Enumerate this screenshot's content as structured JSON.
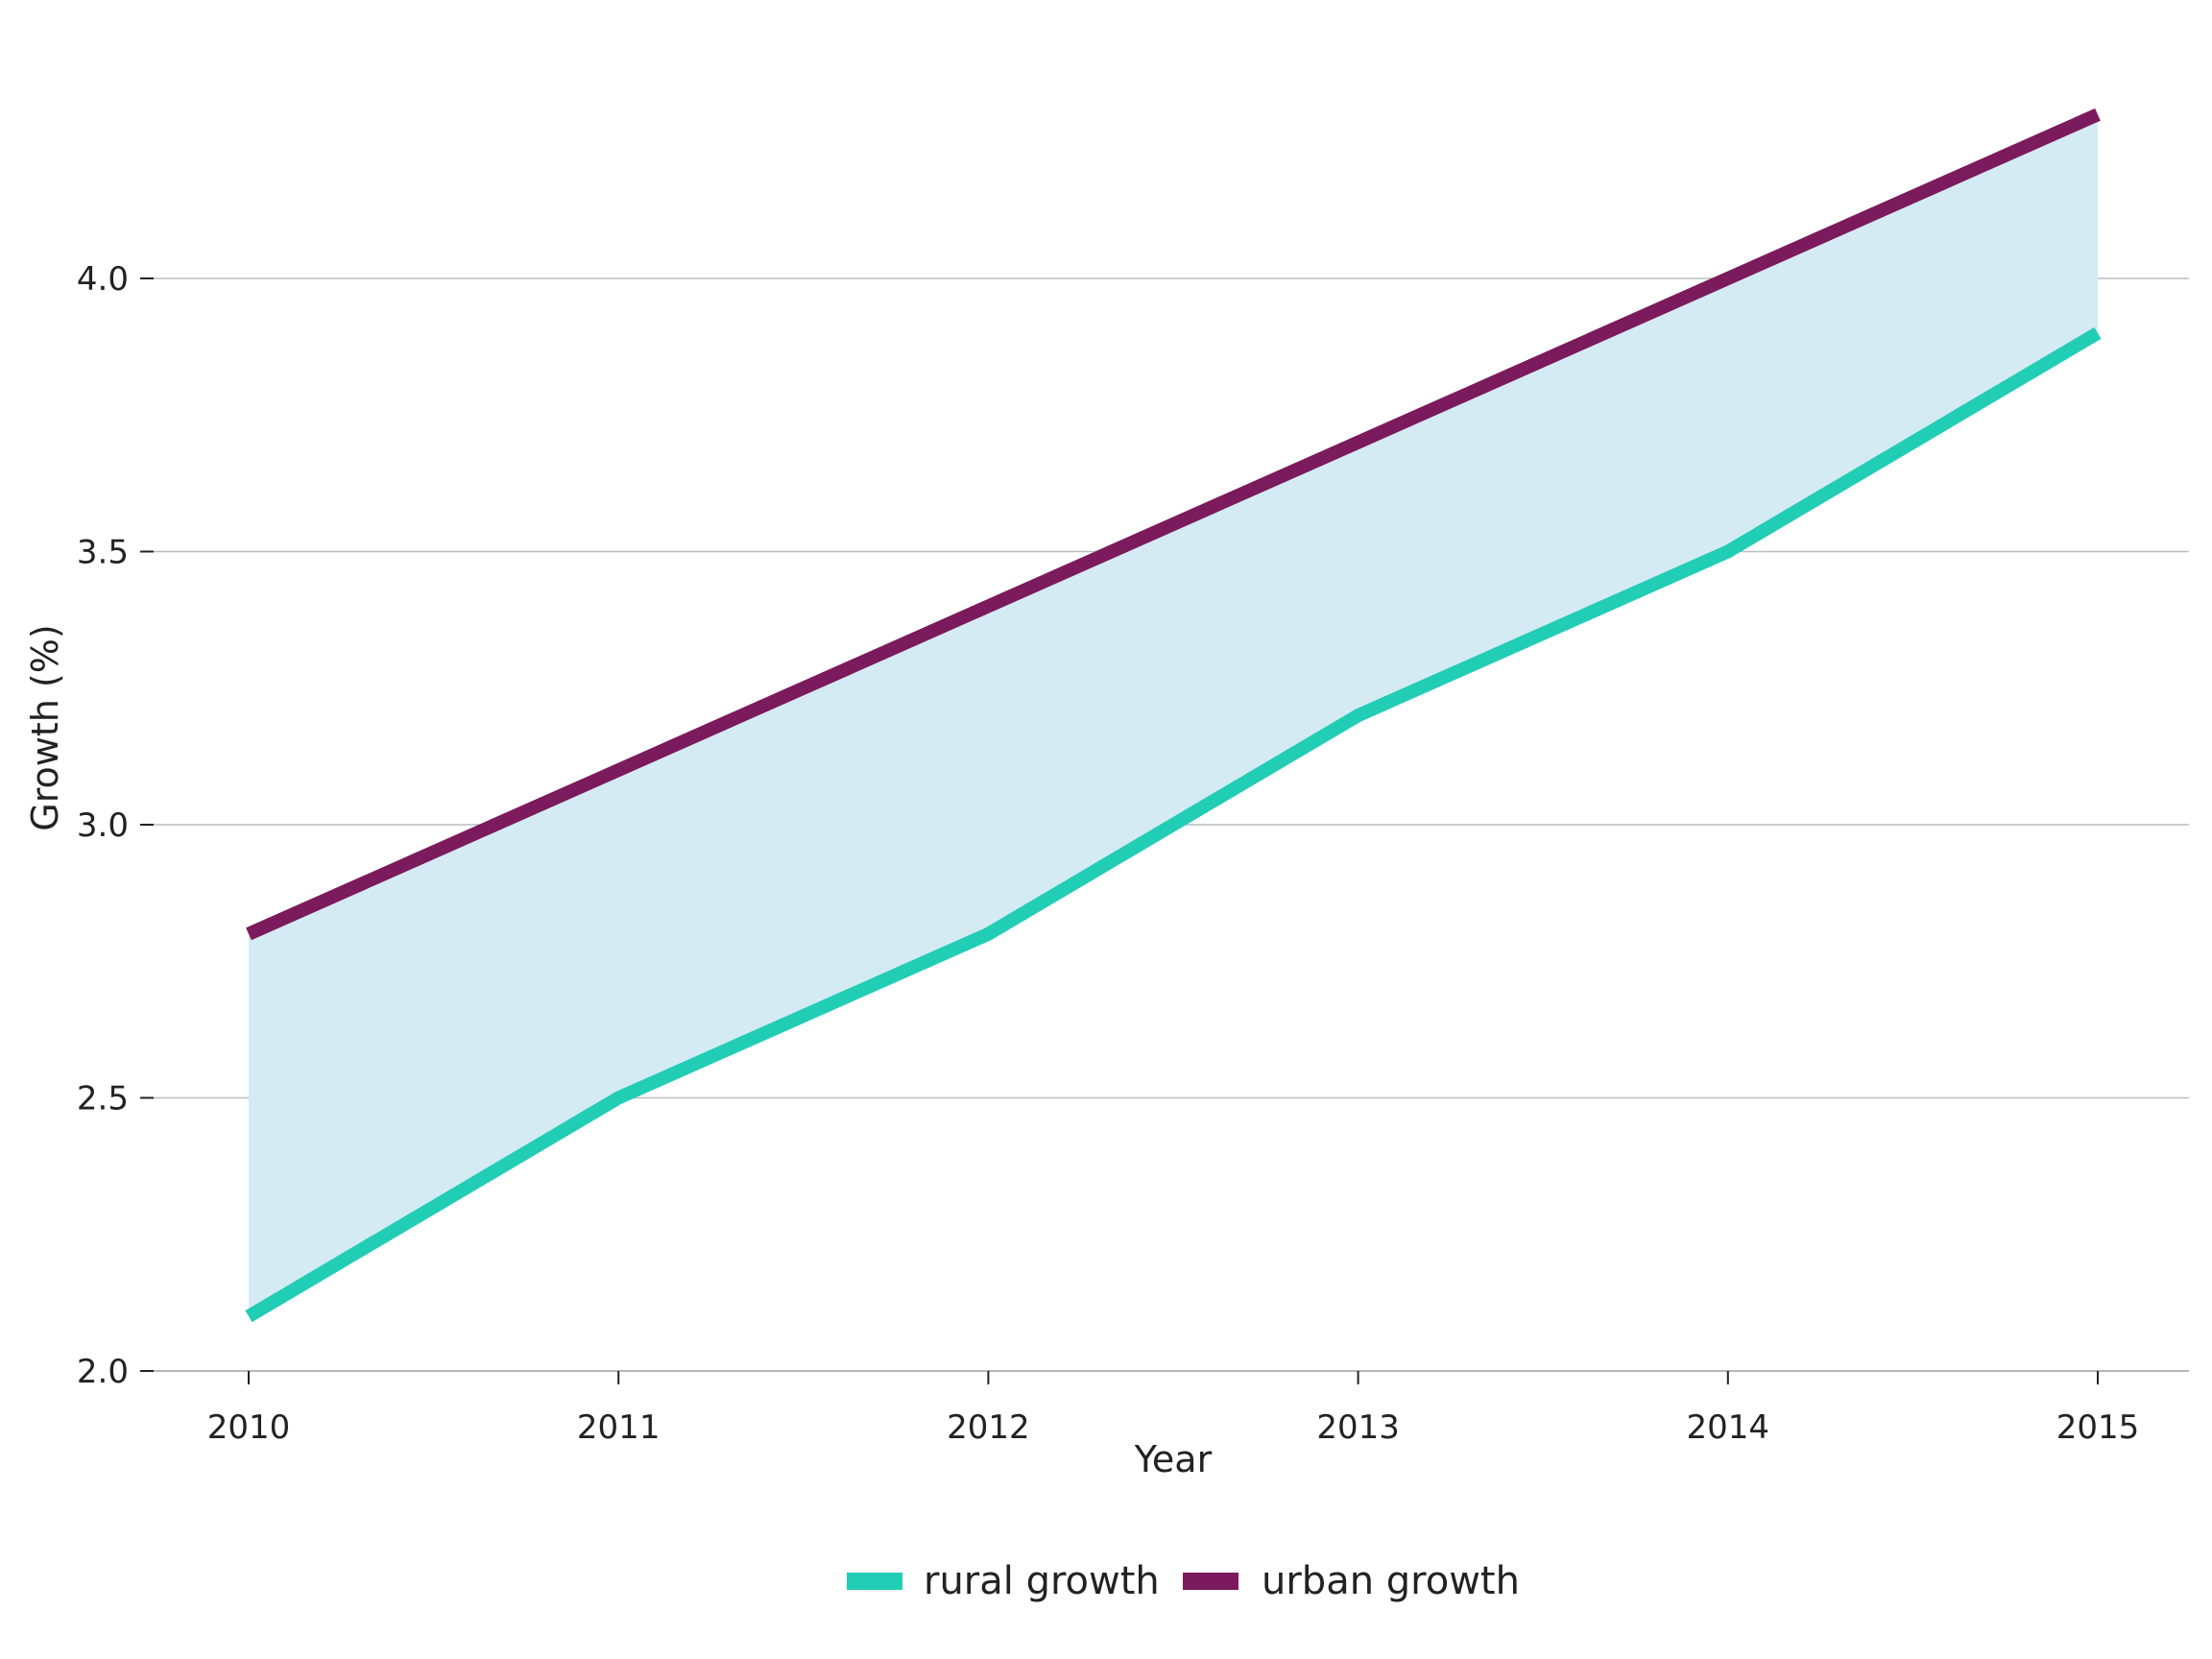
{
  "chart_data": {
    "type": "line",
    "xlabel": "Year",
    "ylabel": "Growth (%)",
    "x": [
      2010,
      2011,
      2012,
      2013,
      2014,
      2015
    ],
    "x_tick_labels": [
      "2010",
      "2011",
      "2012",
      "2013",
      "2014",
      "2015"
    ],
    "y_ticks": [
      2.0,
      2.5,
      3.0,
      3.5,
      4.0
    ],
    "y_tick_labels": [
      "2.0",
      "2.5",
      "3.0",
      "3.5",
      "4.0"
    ],
    "ylim": [
      2.0,
      4.4
    ],
    "xlim": [
      2009.74,
      2015.25
    ],
    "grid": "horizontal",
    "legend_position": "bottom-center",
    "fill_between": {
      "lower": "rural growth",
      "upper": "urban growth",
      "color": "#d4ebf4"
    },
    "series": [
      {
        "name": "rural growth",
        "color": "#22cdb6",
        "values": [
          2.1,
          2.5,
          2.8,
          3.2,
          3.5,
          3.9
        ]
      },
      {
        "name": "urban growth",
        "color": "#7b1a5c",
        "values": [
          2.8,
          3.1,
          3.4,
          3.7,
          4.0,
          4.3
        ]
      }
    ]
  }
}
